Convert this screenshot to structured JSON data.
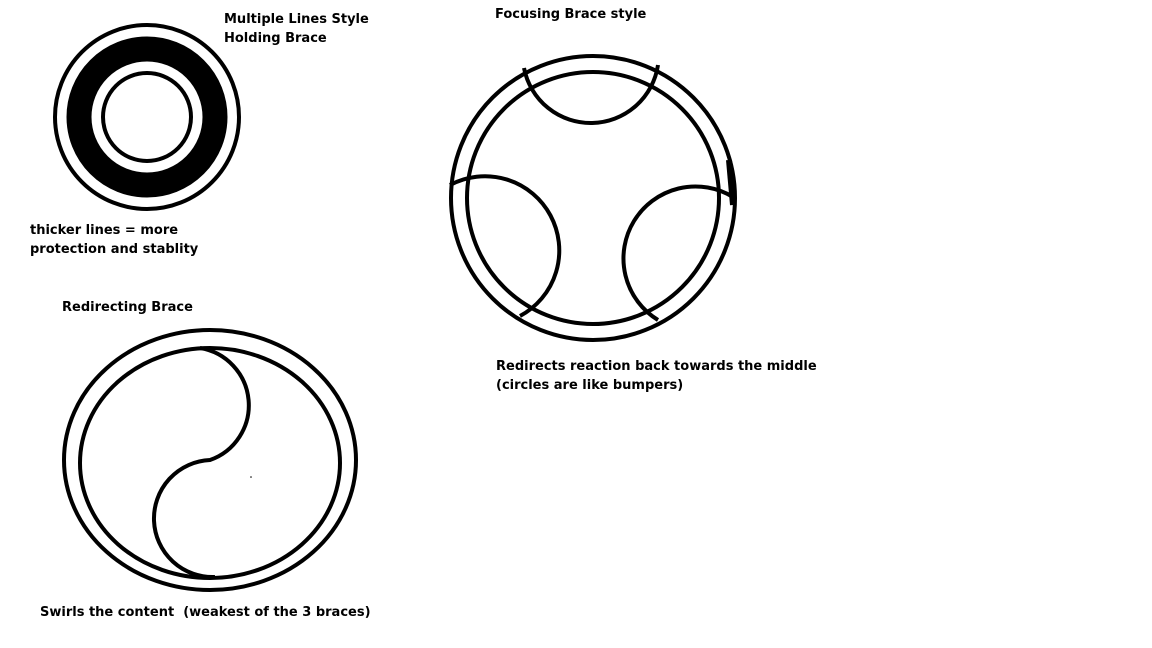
{
  "holding_brace": {
    "title_line1": "Multiple Lines Style",
    "title_line2": "Holding Brace",
    "note_line1": "thicker lines = more",
    "note_line2": "protection and stablity"
  },
  "focusing_brace": {
    "title": "Focusing Brace style",
    "note_line1": "Redirects reaction back towards the middle",
    "note_line2": "(circles are like bumpers)"
  },
  "redirecting_brace": {
    "title": "Redirecting Brace",
    "note": "Swirls the content  (weakest of the 3 braces)"
  },
  "colors": {
    "ink": "#000000",
    "background": "#ffffff"
  }
}
